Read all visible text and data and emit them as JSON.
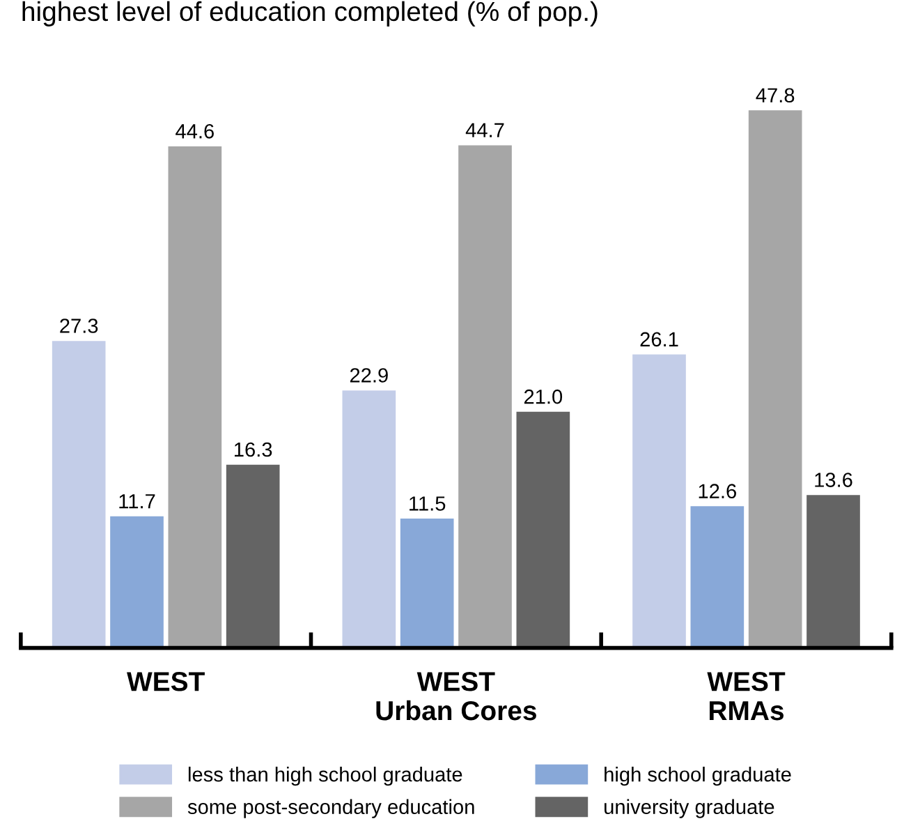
{
  "chart_data": {
    "type": "bar",
    "title": "highest level of education completed (% of pop.)",
    "categories": [
      "WEST",
      "WEST\nUrban Cores",
      "WEST\nRMAs"
    ],
    "series": [
      {
        "name": "less than high school graduate",
        "color": "#c3cde8",
        "values": [
          27.3,
          22.9,
          26.1
        ]
      },
      {
        "name": "high school graduate",
        "color": "#88a8d8",
        "values": [
          11.7,
          11.5,
          12.6
        ]
      },
      {
        "name": "some post-secondary education",
        "color": "#a6a6a6",
        "values": [
          44.6,
          44.7,
          47.8
        ]
      },
      {
        "name": "university graduate",
        "color": "#646464",
        "values": [
          16.3,
          21.0,
          13.6
        ],
        "value_labels": [
          "16.3",
          "21.0",
          "13.6"
        ]
      }
    ],
    "data_labels": true,
    "grid": false,
    "legend": "bottom",
    "tick_labels": "x"
  }
}
